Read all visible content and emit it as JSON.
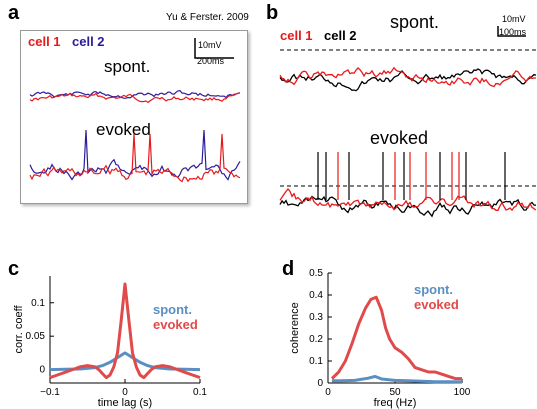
{
  "figure": {
    "panels": {
      "a": {
        "letter": "a",
        "citation": "Yu & Ferster. 2009",
        "legend_cell1": "cell 1",
        "legend_cell2": "cell 2",
        "scale_v": "10mV",
        "scale_t": "200ms",
        "label_spont": "spont.",
        "label_evoked": "evoked"
      },
      "b": {
        "letter": "b",
        "legend_cell1": "cell 1",
        "legend_cell2": "cell 2",
        "scale_v": "10mV",
        "scale_t": "100ms",
        "label_spont": "spont.",
        "label_evoked": "evoked"
      },
      "c": {
        "letter": "c"
      },
      "d": {
        "letter": "d"
      }
    },
    "colors": {
      "red": "#e8191b",
      "blue": "#2b1c9c",
      "black": "#000000",
      "spont_blue": "#5b8fc2",
      "evoked_red": "#e04a4a"
    }
  },
  "chart_data": [
    {
      "type": "line",
      "panel": "c",
      "title": "",
      "xlabel": "time lag (s)",
      "ylabel": "corr. coeff",
      "xlim": [
        -0.1,
        0.1
      ],
      "ylim": [
        -0.02,
        0.14
      ],
      "xticks": [
        -0.1,
        0,
        0.1
      ],
      "xtick_labels": [
        "−0.1",
        "0",
        "0.1"
      ],
      "yticks": [
        0,
        0.05,
        0.1
      ],
      "ytick_labels": [
        "0",
        "0.05",
        "0.1"
      ],
      "legend": "top-right",
      "series": [
        {
          "name": "spont.",
          "color": "#5b8fc2",
          "x": [
            -0.1,
            -0.08,
            -0.06,
            -0.04,
            -0.03,
            -0.02,
            -0.01,
            0,
            0.01,
            0.02,
            0.03,
            0.04,
            0.06,
            0.08,
            0.1
          ],
          "y": [
            0.0,
            0.0005,
            0.001,
            0.003,
            0.006,
            0.011,
            0.018,
            0.025,
            0.018,
            0.011,
            0.006,
            0.003,
            0.001,
            0.0005,
            0.0
          ]
        },
        {
          "name": "evoked",
          "color": "#e04a4a",
          "x": [
            -0.1,
            -0.09,
            -0.08,
            -0.07,
            -0.06,
            -0.05,
            -0.04,
            -0.035,
            -0.03,
            -0.025,
            -0.02,
            -0.015,
            -0.01,
            -0.005,
            0,
            0.005,
            0.01,
            0.015,
            0.02,
            0.025,
            0.03,
            0.035,
            0.04,
            0.05,
            0.06,
            0.07,
            0.08,
            0.09,
            0.1
          ],
          "y": [
            -0.012,
            -0.008,
            -0.004,
            0.0,
            0.004,
            0.006,
            0.004,
            0.0,
            -0.006,
            -0.012,
            -0.008,
            0.004,
            0.025,
            0.075,
            0.128,
            0.075,
            0.025,
            0.004,
            -0.008,
            -0.012,
            -0.006,
            0.0,
            0.004,
            0.006,
            0.004,
            0.0,
            -0.004,
            -0.008,
            -0.012
          ]
        }
      ]
    },
    {
      "type": "line",
      "panel": "d",
      "title": "",
      "xlabel": "freq (Hz)",
      "ylabel": "coherence",
      "xlim": [
        0,
        100
      ],
      "ylim": [
        0,
        0.5
      ],
      "xticks": [
        0,
        50,
        100
      ],
      "xtick_labels": [
        "0",
        "50",
        "100"
      ],
      "yticks": [
        0,
        0.1,
        0.2,
        0.3,
        0.4,
        0.5
      ],
      "ytick_labels": [
        "0",
        "0.1",
        "0.2",
        "0.3",
        "0.4",
        "0.5"
      ],
      "legend": "top-right",
      "series": [
        {
          "name": "spont.",
          "color": "#5b8fc2",
          "x": [
            3,
            10,
            20,
            30,
            35,
            40,
            50,
            60,
            70,
            80,
            90,
            100
          ],
          "y": [
            0.01,
            0.01,
            0.012,
            0.022,
            0.03,
            0.018,
            0.012,
            0.01,
            0.008,
            0.006,
            0.006,
            0.005
          ]
        },
        {
          "name": "evoked",
          "color": "#e04a4a",
          "x": [
            3,
            8,
            13,
            18,
            23,
            28,
            32,
            36,
            40,
            43,
            46,
            50,
            55,
            60,
            65,
            70,
            75,
            80,
            85,
            90,
            95,
            100
          ],
          "y": [
            0.02,
            0.05,
            0.1,
            0.18,
            0.27,
            0.34,
            0.38,
            0.39,
            0.33,
            0.25,
            0.2,
            0.16,
            0.14,
            0.11,
            0.07,
            0.06,
            0.05,
            0.05,
            0.04,
            0.03,
            0.02,
            0.02
          ]
        }
      ]
    }
  ]
}
